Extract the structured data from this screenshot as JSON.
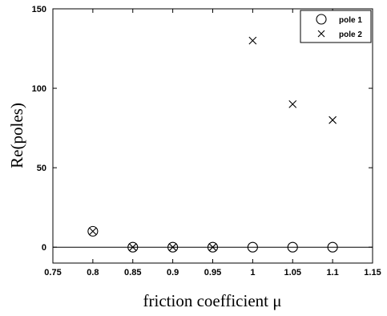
{
  "chart_data": {
    "type": "scatter",
    "title": "",
    "xlabel": "friction coefficient μ",
    "ylabel": "Re(poles)",
    "xlim": [
      0.75,
      1.15
    ],
    "ylim": [
      -10,
      150
    ],
    "x_ticks": [
      0.75,
      0.8,
      0.85,
      0.9,
      0.95,
      1,
      1.05,
      1.1,
      1.15
    ],
    "x_tick_labels": [
      "0.75",
      "0.8",
      "0.85",
      "0.9",
      "0.95",
      "1",
      "1.05",
      "1.1",
      "1.15"
    ],
    "y_ticks": [
      0,
      50,
      100,
      150
    ],
    "y_tick_labels": [
      "0",
      "50",
      "100",
      "150"
    ],
    "reference_line_y": 0,
    "grid": false,
    "legend_position": "top-right",
    "series": [
      {
        "name": "pole 1",
        "marker": "circle",
        "x": [
          0.8,
          0.85,
          0.9,
          0.95,
          1.0,
          1.05,
          1.1
        ],
        "y": [
          10,
          0,
          0,
          0,
          0,
          0,
          0
        ]
      },
      {
        "name": "pole 2",
        "marker": "cross",
        "x": [
          0.8,
          0.85,
          0.9,
          0.95,
          1.0,
          1.05,
          1.1
        ],
        "y": [
          10,
          0,
          0,
          0,
          130,
          90,
          80
        ]
      }
    ]
  }
}
